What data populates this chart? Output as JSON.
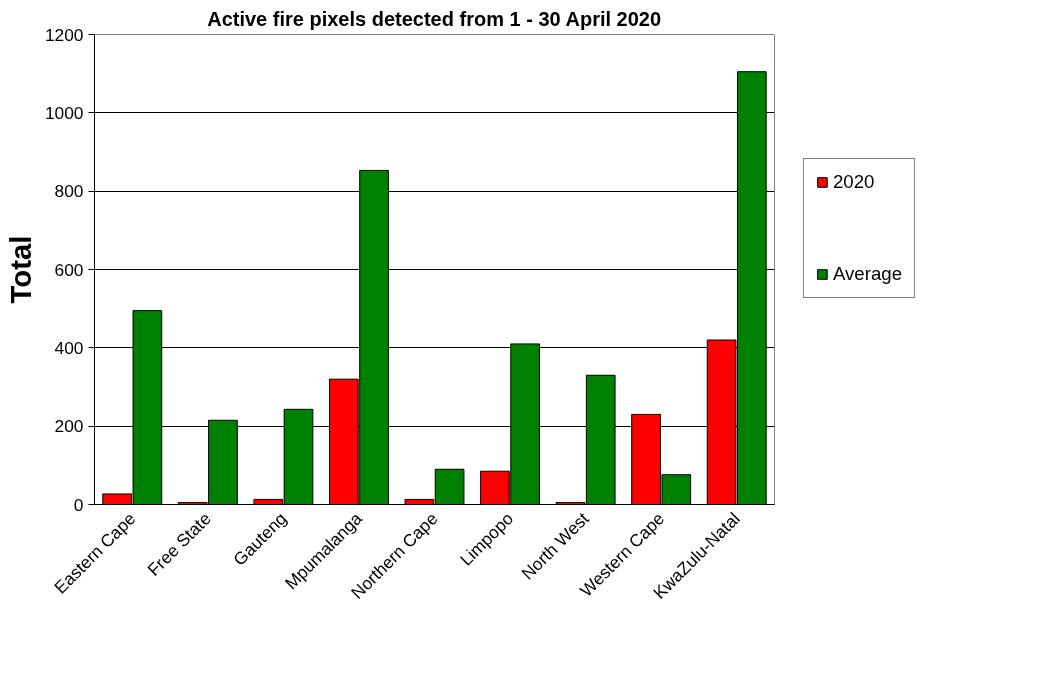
{
  "chart_data": {
    "type": "bar",
    "title": "Active fire pixels detected from 1 - 30 April 2020",
    "ylabel": "Total",
    "categories": [
      "Eastern Cape",
      "Free State",
      "Gauteng",
      "Mpumalanga",
      "Northern Cape",
      "Limpopo",
      "North West",
      "Western Cape",
      "KwaZulu-Natal"
    ],
    "series": [
      {
        "name": "2020",
        "color": "#ff0000",
        "values": [
          27,
          5,
          13,
          320,
          13,
          85,
          5,
          230,
          420
        ]
      },
      {
        "name": "Average",
        "color": "#008000",
        "values": [
          495,
          215,
          243,
          853,
          90,
          410,
          330,
          76,
          1105
        ]
      }
    ],
    "ylim": [
      0,
      1200
    ],
    "yticks": [
      0,
      200,
      400,
      600,
      800,
      1000,
      1200
    ],
    "grid": "y",
    "legend": "right"
  }
}
